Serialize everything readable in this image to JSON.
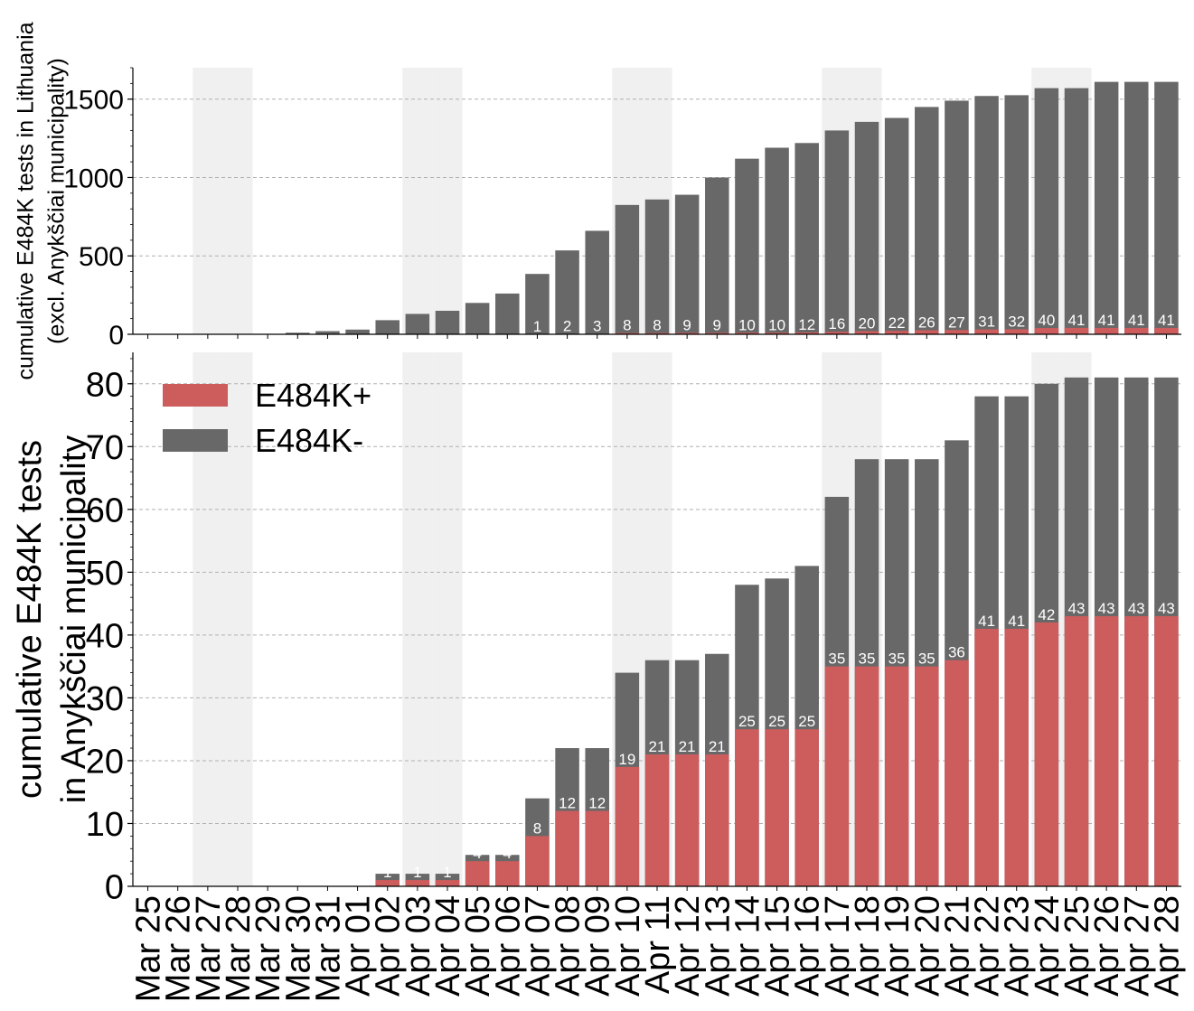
{
  "chart_data": [
    {
      "type": "bar",
      "stacked": true,
      "ylabel_lines": [
        "cumulative E484K tests in Lithuania",
        "(excl. Anykščiai municipality)"
      ],
      "ylim": [
        0,
        1700
      ],
      "yticks": [
        0,
        500,
        1000,
        1500
      ],
      "grid": "horizontal dashed",
      "categories": [
        "Mar 25",
        "Mar 26",
        "Mar 27",
        "Mar 28",
        "Mar 29",
        "Mar 30",
        "Mar 31",
        "Apr 01",
        "Apr 02",
        "Apr 03",
        "Apr 04",
        "Apr 05",
        "Apr 06",
        "Apr 07",
        "Apr 08",
        "Apr 09",
        "Apr 10",
        "Apr 11",
        "Apr 12",
        "Apr 13",
        "Apr 14",
        "Apr 15",
        "Apr 16",
        "Apr 17",
        "Apr 18",
        "Apr 19",
        "Apr 20",
        "Apr 21",
        "Apr 22",
        "Apr 23",
        "Apr 24",
        "Apr 25",
        "Apr 26",
        "Apr 27",
        "Apr 28"
      ],
      "weekend_shading": [
        "Mar 27",
        "Mar 28",
        "Apr 03",
        "Apr 04",
        "Apr 10",
        "Apr 11",
        "Apr 17",
        "Apr 18",
        "Apr 24",
        "Apr 25"
      ],
      "series": [
        {
          "name": "E484K+",
          "values": [
            0,
            0,
            0,
            0,
            0,
            0,
            0,
            0,
            0,
            0,
            0,
            0,
            0,
            1,
            2,
            3,
            8,
            8,
            9,
            9,
            10,
            10,
            12,
            16,
            20,
            22,
            26,
            27,
            31,
            32,
            40,
            41,
            41,
            41,
            41
          ]
        },
        {
          "name": "E484K-",
          "total_values": [
            0,
            0,
            0,
            0,
            0,
            10,
            20,
            30,
            90,
            130,
            150,
            200,
            260,
            385,
            535,
            660,
            825,
            860,
            890,
            1000,
            1120,
            1190,
            1220,
            1300,
            1355,
            1380,
            1450,
            1490,
            1520,
            1525,
            1570,
            1570,
            1610,
            1610,
            1610
          ]
        }
      ],
      "data_labels": [
        "",
        "",
        "",
        "",
        "",
        "",
        "",
        "",
        "",
        "",
        "",
        "",
        "",
        "1",
        "2",
        "3",
        "8",
        "8",
        "9",
        "9",
        "10",
        "10",
        "12",
        "16",
        "20",
        "22",
        "26",
        "27",
        "31",
        "32",
        "40",
        "41",
        "41",
        "41",
        "41"
      ]
    },
    {
      "type": "bar",
      "stacked": true,
      "ylabel_lines": [
        "cumulative E484K tests",
        "in Anykščiai municipality"
      ],
      "ylim": [
        0,
        85
      ],
      "yticks": [
        0,
        10,
        20,
        30,
        40,
        50,
        60,
        70,
        80
      ],
      "grid": "horizontal dashed",
      "legend": {
        "position": "top-left",
        "entries": [
          "E484K+",
          "E484K-"
        ]
      },
      "series": [
        {
          "name": "E484K+",
          "values": [
            0,
            0,
            0,
            0,
            0,
            0,
            0,
            0,
            1,
            1,
            1,
            4,
            4,
            8,
            12,
            12,
            19,
            21,
            21,
            21,
            25,
            25,
            25,
            35,
            35,
            35,
            35,
            36,
            41,
            41,
            42,
            43,
            43,
            43,
            43
          ]
        },
        {
          "name": "E484K-",
          "total_values": [
            0,
            0,
            0,
            0,
            0,
            0,
            0,
            0,
            2,
            2,
            2,
            5,
            5,
            14,
            22,
            22,
            34,
            36,
            36,
            37,
            48,
            49,
            51,
            62,
            68,
            68,
            68,
            71,
            78,
            78,
            80,
            81,
            81,
            81,
            81
          ]
        }
      ],
      "data_labels": [
        "",
        "",
        "",
        "",
        "",
        "",
        "",
        "",
        "1",
        "1",
        "1",
        "4",
        "4",
        "8",
        "12",
        "12",
        "19",
        "21",
        "21",
        "21",
        "25",
        "25",
        "25",
        "35",
        "35",
        "35",
        "35",
        "36",
        "41",
        "41",
        "42",
        "43",
        "43",
        "43",
        "43"
      ]
    }
  ],
  "colors": {
    "positive": "#cd5c5c",
    "negative": "#686868",
    "weekend": "#f0f0f0",
    "grid": "#b0b0b0",
    "axis": "#000000",
    "label_text": "#ffffff"
  }
}
